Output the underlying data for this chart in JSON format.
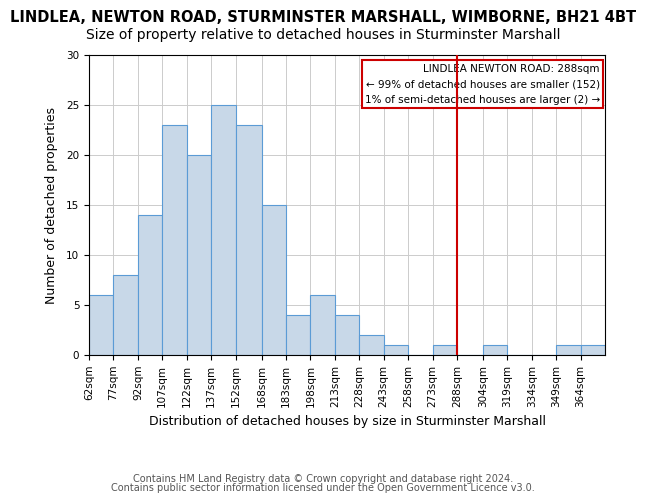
{
  "title": "LINDLEA, NEWTON ROAD, STURMINSTER MARSHALL, WIMBORNE, BH21 4BT",
  "subtitle": "Size of property relative to detached houses in Sturminster Marshall",
  "xlabel": "Distribution of detached houses by size in Sturminster Marshall",
  "ylabel": "Number of detached properties",
  "footer_line1": "Contains HM Land Registry data © Crown copyright and database right 2024.",
  "footer_line2": "Contains public sector information licensed under the Open Government Licence v3.0.",
  "bins": [
    62,
    77,
    92,
    107,
    122,
    137,
    152,
    168,
    183,
    198,
    213,
    228,
    243,
    258,
    273,
    288,
    304,
    319,
    334,
    349,
    364,
    379
  ],
  "counts": [
    6,
    8,
    14,
    23,
    20,
    25,
    23,
    15,
    4,
    6,
    4,
    2,
    1,
    0,
    1,
    0,
    1,
    0,
    0,
    1,
    1
  ],
  "bar_color": "#c8d8e8",
  "bar_edge_color": "#5b9bd5",
  "marker_x": 288,
  "marker_color": "#cc0000",
  "legend_title": "LINDLEA NEWTON ROAD: 288sqm",
  "legend_line1": "← 99% of detached houses are smaller (152)",
  "legend_line2": "1% of semi-detached houses are larger (2) →",
  "legend_box_color": "#cc0000",
  "ylim": [
    0,
    30
  ],
  "xlim": [
    62,
    379
  ],
  "tick_labels": [
    "62sqm",
    "77sqm",
    "92sqm",
    "107sqm",
    "122sqm",
    "137sqm",
    "152sqm",
    "168sqm",
    "183sqm",
    "198sqm",
    "213sqm",
    "228sqm",
    "243sqm",
    "258sqm",
    "273sqm",
    "288sqm",
    "304sqm",
    "319sqm",
    "334sqm",
    "349sqm",
    "364sqm"
  ],
  "tick_positions": [
    62,
    77,
    92,
    107,
    122,
    137,
    152,
    168,
    183,
    198,
    213,
    228,
    243,
    258,
    273,
    288,
    304,
    319,
    334,
    349,
    364
  ],
  "title_fontsize": 10.5,
  "subtitle_fontsize": 10,
  "label_fontsize": 9,
  "tick_fontsize": 7.5,
  "footer_fontsize": 7
}
